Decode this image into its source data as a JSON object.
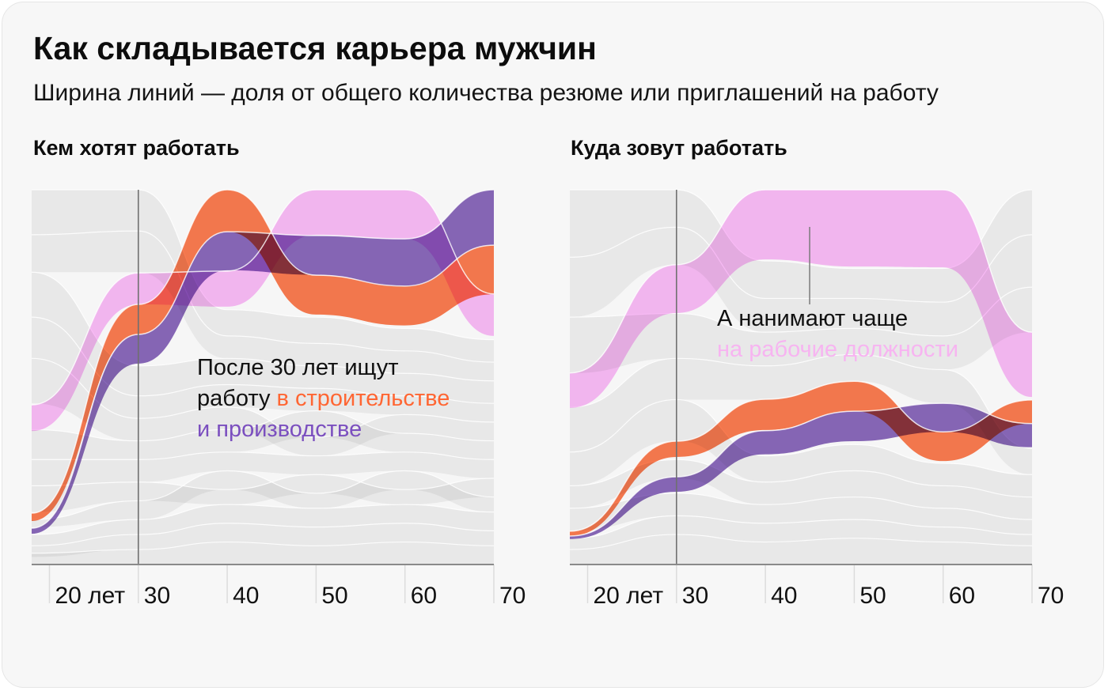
{
  "title": "Как складывается карьера мужчин",
  "subtitle": "Ширина линий — доля от общего количества резюме или приглашений на работу",
  "colors": {
    "orange": "#fb7b50",
    "purple": "#8a69bb",
    "pink": "#fabcf7",
    "other": "#e6e6e6",
    "orange_text": "#ff6633",
    "purple_text": "#7b4fbf",
    "pink_text": "#f7b4f1",
    "axis": "#8a8a8a",
    "tick": "#dcdcdc",
    "marker": "#707070"
  },
  "annotations": {
    "wants": {
      "lines": [
        [
          {
            "text": "После 30 лет ищут",
            "color": "#111111"
          }
        ],
        [
          {
            "text": "работу ",
            "color": "#111111"
          },
          {
            "text": "в строительстве",
            "color": "#ff6633"
          }
        ],
        [
          {
            "text": "и производстве",
            "color": "#7b4fbf"
          }
        ]
      ]
    },
    "invited": {
      "lines": [
        [
          {
            "text": "А нанимают чаще",
            "color": "#111111"
          }
        ],
        [
          {
            "text": "на рабочие должности",
            "color": "#f7b4f1"
          }
        ]
      ]
    }
  },
  "chart_data": [
    {
      "type": "area",
      "title": "Кем хотят работать",
      "xlabel": "",
      "ylabel": "",
      "value_meaning": "share of total resumes (band width), stacked order top to bottom",
      "x": [
        18,
        30,
        40,
        50,
        60,
        70
      ],
      "xlim": [
        18,
        70
      ],
      "x_ticks": [
        {
          "value": 20,
          "label": "20 лет"
        },
        {
          "value": 30,
          "label": "30"
        },
        {
          "value": 40,
          "label": "40"
        },
        {
          "value": 50,
          "label": "50"
        },
        {
          "value": 60,
          "label": "60"
        },
        {
          "value": 70,
          "label": "70"
        }
      ],
      "marker_x": 30,
      "grid": false,
      "series": [
        {
          "key": "pink",
          "name": "рабочие должности",
          "color": "pink",
          "offset": [
            0.574,
            0.222,
            0.217,
            0.0,
            0.0,
            0.278
          ],
          "share": [
            0.07,
            0.084,
            0.095,
            0.12,
            0.131,
            0.112
          ]
        },
        {
          "key": "orange",
          "name": "в строительстве",
          "color": "orange",
          "offset": [
            0.863,
            0.306,
            0.0,
            0.228,
            0.257,
            0.148
          ],
          "share": [
            0.021,
            0.08,
            0.112,
            0.105,
            0.105,
            0.131
          ]
        },
        {
          "key": "purple",
          "name": "и производстве",
          "color": "purple",
          "offset": [
            0.903,
            0.386,
            0.112,
            0.122,
            0.131,
            0.0
          ],
          "share": [
            0.015,
            0.078,
            0.103,
            0.105,
            0.127,
            0.148
          ]
        }
      ],
      "other_series": [
        {
          "offset": [
            0.0,
            0.0,
            0.32,
            0.34,
            0.37,
            0.4
          ],
          "share": [
            0.12,
            0.11,
            0.07,
            0.07,
            0.06,
            0.06
          ]
        },
        {
          "offset": [
            0.12,
            0.11,
            0.39,
            0.41,
            0.43,
            0.46
          ],
          "share": [
            0.1,
            0.11,
            0.06,
            0.06,
            0.06,
            0.05
          ]
        },
        {
          "offset": [
            0.22,
            0.47,
            0.45,
            0.47,
            0.49,
            0.51
          ],
          "share": [
            0.12,
            0.08,
            0.07,
            0.06,
            0.06,
            0.06
          ]
        },
        {
          "offset": [
            0.34,
            0.55,
            0.52,
            0.53,
            0.55,
            0.57
          ],
          "share": [
            0.11,
            0.06,
            0.06,
            0.06,
            0.05,
            0.05
          ]
        },
        {
          "offset": [
            0.45,
            0.61,
            0.58,
            0.66,
            0.6,
            0.62
          ],
          "share": [
            0.12,
            0.06,
            0.06,
            0.05,
            0.05,
            0.05
          ]
        },
        {
          "offset": [
            0.64,
            0.67,
            0.64,
            0.59,
            0.65,
            0.67
          ],
          "share": [
            0.08,
            0.05,
            0.06,
            0.07,
            0.05,
            0.05
          ]
        },
        {
          "offset": [
            0.72,
            0.72,
            0.7,
            0.71,
            0.7,
            0.72
          ],
          "share": [
            0.07,
            0.06,
            0.05,
            0.05,
            0.05,
            0.05
          ]
        },
        {
          "offset": [
            0.79,
            0.78,
            0.8,
            0.76,
            0.8,
            0.77
          ],
          "share": [
            0.07,
            0.05,
            0.04,
            0.05,
            0.04,
            0.05
          ]
        },
        {
          "offset": [
            0.88,
            0.83,
            0.75,
            0.81,
            0.75,
            0.82
          ],
          "share": [
            0.02,
            0.05,
            0.05,
            0.04,
            0.05,
            0.04
          ]
        },
        {
          "offset": [
            0.92,
            0.88,
            0.84,
            0.85,
            0.84,
            0.86
          ],
          "share": [
            0.03,
            0.04,
            0.05,
            0.05,
            0.05,
            0.05
          ]
        },
        {
          "offset": [
            0.95,
            0.92,
            0.89,
            0.9,
            0.89,
            0.91
          ],
          "share": [
            0.03,
            0.04,
            0.05,
            0.05,
            0.05,
            0.04
          ]
        },
        {
          "offset": [
            0.97,
            0.96,
            0.94,
            0.95,
            0.94,
            0.95
          ],
          "share": [
            0.03,
            0.04,
            0.06,
            0.05,
            0.06,
            0.05
          ]
        }
      ]
    },
    {
      "type": "area",
      "title": "Куда зовут работать",
      "xlabel": "",
      "ylabel": "",
      "value_meaning": "share of total job invitations (band width), stacked order top to bottom",
      "x": [
        18,
        30,
        40,
        50,
        60,
        70
      ],
      "xlim": [
        18,
        70
      ],
      "x_ticks": [
        {
          "value": 20,
          "label": "20 лет"
        },
        {
          "value": 30,
          "label": "30"
        },
        {
          "value": 40,
          "label": "40"
        },
        {
          "value": 50,
          "label": "50"
        },
        {
          "value": 60,
          "label": "60"
        },
        {
          "value": 70,
          "label": "70"
        }
      ],
      "marker_x": 30,
      "grid": false,
      "series": [
        {
          "key": "pink",
          "name": "на рабочие должности",
          "color": "pink",
          "offset": [
            0.489,
            0.2,
            0.0,
            0.0,
            0.0,
            0.38
          ],
          "share": [
            0.093,
            0.129,
            0.186,
            0.205,
            0.207,
            0.173
          ]
        },
        {
          "key": "orange",
          "name": "в строительстве",
          "color": "orange",
          "offset": [
            0.911,
            0.671,
            0.559,
            0.511,
            0.646,
            0.561
          ],
          "share": [
            0.013,
            0.042,
            0.082,
            0.08,
            0.078,
            0.063
          ]
        },
        {
          "key": "purple",
          "name": "и производстве",
          "color": "purple",
          "offset": [
            0.924,
            0.766,
            0.643,
            0.591,
            0.57,
            0.624
          ],
          "share": [
            0.008,
            0.04,
            0.063,
            0.08,
            0.076,
            0.063
          ]
        }
      ],
      "other_series": [
        {
          "offset": [
            0.0,
            0.0,
            0.19,
            0.21,
            0.21,
            0.0
          ],
          "share": [
            0.18,
            0.1,
            0.1,
            0.08,
            0.09,
            0.12
          ]
        },
        {
          "offset": [
            0.18,
            0.1,
            0.29,
            0.29,
            0.3,
            0.12
          ],
          "share": [
            0.16,
            0.1,
            0.09,
            0.08,
            0.09,
            0.14
          ]
        },
        {
          "offset": [
            0.34,
            0.33,
            0.38,
            0.37,
            0.39,
            0.26
          ],
          "share": [
            0.15,
            0.12,
            0.09,
            0.07,
            0.09,
            0.12
          ]
        },
        {
          "offset": [
            0.58,
            0.45,
            0.47,
            0.44,
            0.48,
            0.69
          ],
          "share": [
            0.12,
            0.11,
            0.09,
            0.07,
            0.09,
            0.07
          ]
        },
        {
          "offset": [
            0.7,
            0.56,
            0.71,
            0.68,
            0.73,
            0.76
          ],
          "share": [
            0.09,
            0.11,
            0.07,
            0.07,
            0.06,
            0.06
          ]
        },
        {
          "offset": [
            0.79,
            0.72,
            0.78,
            0.75,
            0.79,
            0.82
          ],
          "share": [
            0.06,
            0.05,
            0.06,
            0.07,
            0.06,
            0.06
          ]
        },
        {
          "offset": [
            0.85,
            0.81,
            0.84,
            0.82,
            0.85,
            0.88
          ],
          "share": [
            0.06,
            0.06,
            0.05,
            0.06,
            0.05,
            0.04
          ]
        },
        {
          "offset": [
            0.93,
            0.87,
            0.89,
            0.88,
            0.9,
            0.92
          ],
          "share": [
            0.03,
            0.05,
            0.05,
            0.05,
            0.04,
            0.03
          ]
        },
        {
          "offset": [
            0.96,
            0.92,
            0.94,
            0.93,
            0.94,
            0.95
          ],
          "share": [
            0.04,
            0.08,
            0.06,
            0.07,
            0.06,
            0.05
          ]
        }
      ]
    }
  ]
}
